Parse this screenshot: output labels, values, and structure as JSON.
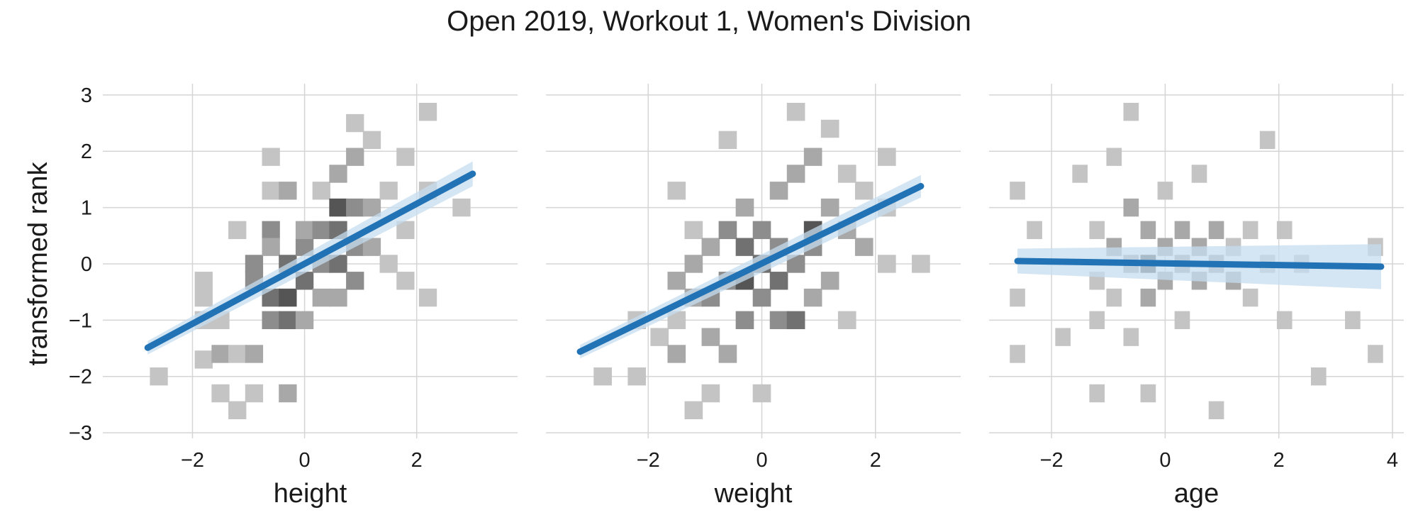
{
  "title": "Open 2019, Workout 1, Women's Division",
  "chart_data": [
    {
      "type": "heatmap",
      "xlabel": "height",
      "ylabel": "transformed rank",
      "xlim": [
        -3.6,
        3.8
      ],
      "ylim": [
        -3.1,
        3.2
      ],
      "xticks": [
        -2,
        0,
        2
      ],
      "xtick_labels": [
        "−2",
        "0",
        "2"
      ],
      "yticks": [
        -3,
        -2,
        -1,
        0,
        1,
        2,
        3
      ],
      "ytick_labels": [
        "−3",
        "−2",
        "−1",
        "0",
        "1",
        "2",
        "3"
      ],
      "grid": true,
      "bin_width": 0.32,
      "bin_height": 0.32,
      "bins": [
        {
          "x": -2.6,
          "y": -2.0,
          "v": 1
        },
        {
          "x": -1.8,
          "y": -1.7,
          "v": 1
        },
        {
          "x": -1.8,
          "y": -1.0,
          "v": 1
        },
        {
          "x": -1.8,
          "y": -0.6,
          "v": 1
        },
        {
          "x": -1.8,
          "y": -0.3,
          "v": 1
        },
        {
          "x": -1.5,
          "y": -1.0,
          "v": 1
        },
        {
          "x": -1.5,
          "y": -1.6,
          "v": 2
        },
        {
          "x": -1.5,
          "y": -2.3,
          "v": 1
        },
        {
          "x": -1.2,
          "y": -1.6,
          "v": 1
        },
        {
          "x": -1.2,
          "y": -2.6,
          "v": 1
        },
        {
          "x": -1.2,
          "y": 0.6,
          "v": 1
        },
        {
          "x": -0.9,
          "y": -0.3,
          "v": 3
        },
        {
          "x": -0.9,
          "y": -1.6,
          "v": 2
        },
        {
          "x": -0.9,
          "y": 0.0,
          "v": 3
        },
        {
          "x": -0.9,
          "y": -2.3,
          "v": 1
        },
        {
          "x": -0.6,
          "y": -0.6,
          "v": 4
        },
        {
          "x": -0.6,
          "y": -1.0,
          "v": 3
        },
        {
          "x": -0.6,
          "y": 0.6,
          "v": 3
        },
        {
          "x": -0.6,
          "y": 0.3,
          "v": 2
        },
        {
          "x": -0.6,
          "y": 1.9,
          "v": 1
        },
        {
          "x": -0.6,
          "y": 1.3,
          "v": 1
        },
        {
          "x": -0.3,
          "y": -0.6,
          "v": 5
        },
        {
          "x": -0.3,
          "y": -1.0,
          "v": 4
        },
        {
          "x": -0.3,
          "y": 0.0,
          "v": 4
        },
        {
          "x": -0.3,
          "y": 1.3,
          "v": 2
        },
        {
          "x": -0.3,
          "y": -2.3,
          "v": 2
        },
        {
          "x": 0.0,
          "y": 0.3,
          "v": 3
        },
        {
          "x": 0.0,
          "y": -0.3,
          "v": 4
        },
        {
          "x": 0.0,
          "y": 0.6,
          "v": 2
        },
        {
          "x": 0.0,
          "y": -1.0,
          "v": 2
        },
        {
          "x": 0.3,
          "y": 0.6,
          "v": 3
        },
        {
          "x": 0.3,
          "y": 0.0,
          "v": 3
        },
        {
          "x": 0.3,
          "y": -0.6,
          "v": 2
        },
        {
          "x": 0.3,
          "y": 1.3,
          "v": 1
        },
        {
          "x": 0.6,
          "y": 1.0,
          "v": 5
        },
        {
          "x": 0.6,
          "y": 0.6,
          "v": 4
        },
        {
          "x": 0.6,
          "y": 0.0,
          "v": 4
        },
        {
          "x": 0.6,
          "y": -0.6,
          "v": 2
        },
        {
          "x": 0.6,
          "y": 1.6,
          "v": 2
        },
        {
          "x": 0.9,
          "y": 0.3,
          "v": 3
        },
        {
          "x": 0.9,
          "y": 1.0,
          "v": 3
        },
        {
          "x": 0.9,
          "y": -0.3,
          "v": 3
        },
        {
          "x": 0.9,
          "y": 2.5,
          "v": 1
        },
        {
          "x": 0.9,
          "y": 1.9,
          "v": 2
        },
        {
          "x": 1.2,
          "y": 0.3,
          "v": 2
        },
        {
          "x": 1.2,
          "y": 1.0,
          "v": 2
        },
        {
          "x": 1.2,
          "y": 2.2,
          "v": 1
        },
        {
          "x": 1.5,
          "y": 0.0,
          "v": 1
        },
        {
          "x": 1.5,
          "y": 1.3,
          "v": 1
        },
        {
          "x": 1.8,
          "y": -0.3,
          "v": 1
        },
        {
          "x": 1.8,
          "y": 0.6,
          "v": 1
        },
        {
          "x": 1.8,
          "y": 1.9,
          "v": 1
        },
        {
          "x": 2.2,
          "y": 1.3,
          "v": 1
        },
        {
          "x": 2.2,
          "y": -0.6,
          "v": 1
        },
        {
          "x": 2.2,
          "y": 2.7,
          "v": 1
        },
        {
          "x": 2.8,
          "y": 1.0,
          "v": 1
        }
      ],
      "fit": {
        "x": [
          -2.8,
          3.0
        ],
        "y": [
          -1.49,
          1.6
        ],
        "band": [
          0.12,
          0.22
        ]
      }
    },
    {
      "type": "heatmap",
      "xlabel": "weight",
      "xlim": [
        -3.8,
        3.5
      ],
      "ylim": [
        -3.1,
        3.2
      ],
      "xticks": [
        -2,
        0,
        2
      ],
      "xtick_labels": [
        "−2",
        "0",
        "2"
      ],
      "grid": true,
      "bin_width": 0.32,
      "bin_height": 0.32,
      "bins": [
        {
          "x": -2.8,
          "y": -2.0,
          "v": 1
        },
        {
          "x": -2.2,
          "y": -1.0,
          "v": 1
        },
        {
          "x": -2.2,
          "y": -2.0,
          "v": 1
        },
        {
          "x": -1.8,
          "y": -1.3,
          "v": 1
        },
        {
          "x": -1.5,
          "y": -1.0,
          "v": 1
        },
        {
          "x": -1.5,
          "y": -1.6,
          "v": 2
        },
        {
          "x": -1.5,
          "y": -0.3,
          "v": 2
        },
        {
          "x": -1.5,
          "y": 1.3,
          "v": 1
        },
        {
          "x": -1.2,
          "y": -2.6,
          "v": 1
        },
        {
          "x": -1.2,
          "y": 0.0,
          "v": 2
        },
        {
          "x": -1.2,
          "y": -0.6,
          "v": 2
        },
        {
          "x": -1.2,
          "y": 0.6,
          "v": 1
        },
        {
          "x": -0.9,
          "y": -0.6,
          "v": 3
        },
        {
          "x": -0.9,
          "y": -1.3,
          "v": 2
        },
        {
          "x": -0.9,
          "y": 0.3,
          "v": 2
        },
        {
          "x": -0.9,
          "y": -2.3,
          "v": 1
        },
        {
          "x": -0.6,
          "y": -0.3,
          "v": 3
        },
        {
          "x": -0.6,
          "y": 0.6,
          "v": 3
        },
        {
          "x": -0.6,
          "y": -1.6,
          "v": 2
        },
        {
          "x": -0.6,
          "y": 2.2,
          "v": 1
        },
        {
          "x": -0.3,
          "y": -0.3,
          "v": 5
        },
        {
          "x": -0.3,
          "y": 0.3,
          "v": 4
        },
        {
          "x": -0.3,
          "y": -1.0,
          "v": 3
        },
        {
          "x": -0.3,
          "y": 1.0,
          "v": 2
        },
        {
          "x": 0.0,
          "y": 0.0,
          "v": 4
        },
        {
          "x": 0.0,
          "y": -0.6,
          "v": 3
        },
        {
          "x": 0.0,
          "y": 0.6,
          "v": 3
        },
        {
          "x": 0.0,
          "y": -2.3,
          "v": 1
        },
        {
          "x": 0.3,
          "y": -0.3,
          "v": 4
        },
        {
          "x": 0.3,
          "y": 0.3,
          "v": 3
        },
        {
          "x": 0.3,
          "y": -1.0,
          "v": 3
        },
        {
          "x": 0.3,
          "y": 1.3,
          "v": 2
        },
        {
          "x": 0.6,
          "y": 0.0,
          "v": 3
        },
        {
          "x": 0.6,
          "y": -1.0,
          "v": 4
        },
        {
          "x": 0.6,
          "y": 1.6,
          "v": 2
        },
        {
          "x": 0.6,
          "y": 2.7,
          "v": 1
        },
        {
          "x": 0.9,
          "y": 0.6,
          "v": 5
        },
        {
          "x": 0.9,
          "y": 0.3,
          "v": 3
        },
        {
          "x": 0.9,
          "y": -0.6,
          "v": 2
        },
        {
          "x": 0.9,
          "y": 1.9,
          "v": 2
        },
        {
          "x": 1.2,
          "y": 1.0,
          "v": 2
        },
        {
          "x": 1.2,
          "y": -0.3,
          "v": 2
        },
        {
          "x": 1.2,
          "y": 2.4,
          "v": 1
        },
        {
          "x": 1.5,
          "y": 0.6,
          "v": 2
        },
        {
          "x": 1.5,
          "y": -1.0,
          "v": 1
        },
        {
          "x": 1.5,
          "y": 1.6,
          "v": 1
        },
        {
          "x": 1.8,
          "y": 0.3,
          "v": 2
        },
        {
          "x": 1.8,
          "y": 1.3,
          "v": 1
        },
        {
          "x": 2.2,
          "y": 1.0,
          "v": 1
        },
        {
          "x": 2.2,
          "y": 0.0,
          "v": 1
        },
        {
          "x": 2.2,
          "y": 1.9,
          "v": 1
        },
        {
          "x": 2.8,
          "y": 0.0,
          "v": 1
        }
      ],
      "fit": {
        "x": [
          -3.2,
          2.8
        ],
        "y": [
          -1.56,
          1.38
        ],
        "band": [
          0.12,
          0.2
        ]
      }
    },
    {
      "type": "heatmap",
      "xlabel": "age",
      "xlim": [
        -3.1,
        4.2
      ],
      "ylim": [
        -3.1,
        3.2
      ],
      "xticks": [
        -2,
        0,
        2,
        4
      ],
      "xtick_labels": [
        "−2",
        "0",
        "2",
        "4"
      ],
      "grid": true,
      "bin_width": 0.27,
      "bin_height": 0.32,
      "bins": [
        {
          "x": -2.6,
          "y": 1.3,
          "v": 1
        },
        {
          "x": -2.6,
          "y": -0.6,
          "v": 1
        },
        {
          "x": -2.6,
          "y": -1.6,
          "v": 1
        },
        {
          "x": -2.3,
          "y": 0.6,
          "v": 1
        },
        {
          "x": -1.8,
          "y": -1.3,
          "v": 1
        },
        {
          "x": -1.5,
          "y": 1.6,
          "v": 1
        },
        {
          "x": -1.2,
          "y": 0.6,
          "v": 1
        },
        {
          "x": -1.2,
          "y": -0.3,
          "v": 1
        },
        {
          "x": -1.2,
          "y": -1.0,
          "v": 1
        },
        {
          "x": -1.2,
          "y": -2.3,
          "v": 1
        },
        {
          "x": -0.9,
          "y": 0.3,
          "v": 2
        },
        {
          "x": -0.9,
          "y": -0.6,
          "v": 1
        },
        {
          "x": -0.9,
          "y": 1.9,
          "v": 1
        },
        {
          "x": -0.6,
          "y": 0.0,
          "v": 2
        },
        {
          "x": -0.6,
          "y": 1.0,
          "v": 2
        },
        {
          "x": -0.6,
          "y": -1.3,
          "v": 1
        },
        {
          "x": -0.6,
          "y": 2.7,
          "v": 1
        },
        {
          "x": -0.3,
          "y": 0.0,
          "v": 5
        },
        {
          "x": -0.3,
          "y": 0.6,
          "v": 2
        },
        {
          "x": -0.3,
          "y": -0.6,
          "v": 2
        },
        {
          "x": -0.3,
          "y": -2.3,
          "v": 1
        },
        {
          "x": 0.0,
          "y": 0.3,
          "v": 2
        },
        {
          "x": 0.0,
          "y": -0.3,
          "v": 2
        },
        {
          "x": 0.0,
          "y": 1.3,
          "v": 1
        },
        {
          "x": 0.3,
          "y": 0.0,
          "v": 2
        },
        {
          "x": 0.3,
          "y": 0.6,
          "v": 2
        },
        {
          "x": 0.3,
          "y": -1.0,
          "v": 1
        },
        {
          "x": 0.6,
          "y": 0.3,
          "v": 2
        },
        {
          "x": 0.6,
          "y": -0.3,
          "v": 2
        },
        {
          "x": 0.6,
          "y": 1.6,
          "v": 1
        },
        {
          "x": 0.9,
          "y": 0.0,
          "v": 2
        },
        {
          "x": 0.9,
          "y": 0.6,
          "v": 2
        },
        {
          "x": 0.9,
          "y": -2.6,
          "v": 1
        },
        {
          "x": 1.2,
          "y": -0.3,
          "v": 2
        },
        {
          "x": 1.2,
          "y": 0.3,
          "v": 1
        },
        {
          "x": 1.5,
          "y": 0.6,
          "v": 1
        },
        {
          "x": 1.5,
          "y": -0.6,
          "v": 1
        },
        {
          "x": 1.8,
          "y": 0.0,
          "v": 1
        },
        {
          "x": 1.8,
          "y": 2.2,
          "v": 1
        },
        {
          "x": 2.1,
          "y": 0.6,
          "v": 1
        },
        {
          "x": 2.1,
          "y": -1.0,
          "v": 1
        },
        {
          "x": 2.4,
          "y": 0.0,
          "v": 1
        },
        {
          "x": 2.7,
          "y": -2.0,
          "v": 1
        },
        {
          "x": 3.3,
          "y": -1.0,
          "v": 1
        },
        {
          "x": 3.7,
          "y": 0.3,
          "v": 1
        },
        {
          "x": 3.7,
          "y": -1.6,
          "v": 1
        }
      ],
      "fit": {
        "x": [
          -2.6,
          3.8
        ],
        "y": [
          0.05,
          -0.05
        ],
        "band": [
          0.22,
          0.4
        ]
      }
    }
  ],
  "colors": {
    "fit_line": "#2273b5",
    "fit_band": "#c6dcef",
    "bin_light": "#c4c4c4",
    "bin_dark": "#555555",
    "grid": "#d5d5d5"
  }
}
